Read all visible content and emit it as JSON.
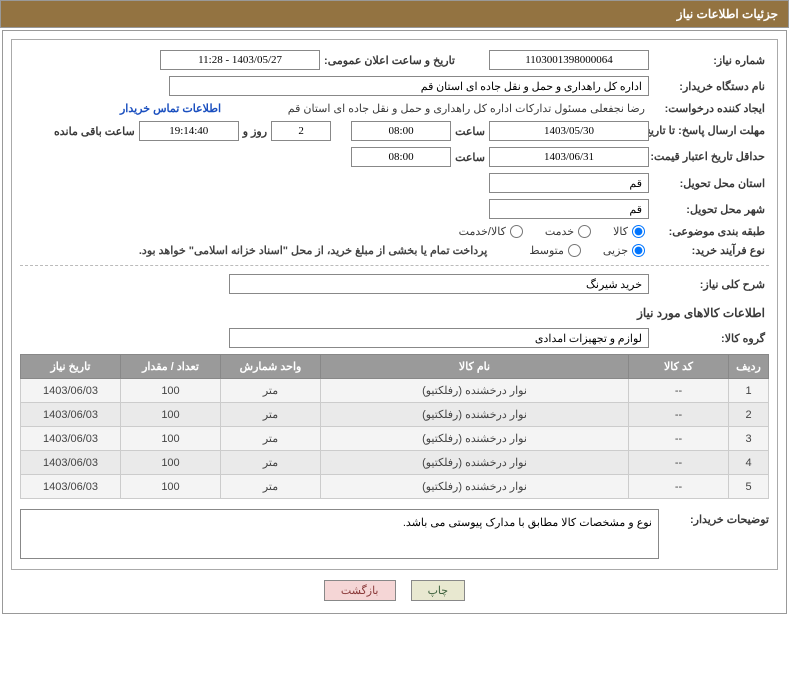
{
  "panelTitle": "جزئیات اطلاعات نیاز",
  "labels": {
    "needNo": "شماره نیاز:",
    "announceDate": "تاریخ و ساعت اعلان عمومی:",
    "buyerOrg": "نام دستگاه خریدار:",
    "requester": "ایجاد کننده درخواست:",
    "contactLink": "اطلاعات تماس خریدار",
    "responseDeadline": "مهلت ارسال پاسخ: تا تاریخ:",
    "hour": "ساعت",
    "daysAnd": "روز و",
    "remaining": "ساعت باقی مانده",
    "priceValidity": "حداقل تاریخ اعتبار قیمت: تا تاریخ:",
    "deliveryProvince": "استان محل تحویل:",
    "deliveryCity": "شهر محل تحویل:",
    "classification": "طبقه بندی موضوعی:",
    "purchaseType": "نوع فرآیند خرید:",
    "treasuryNote": "پرداخت تمام یا بخشی از مبلغ خرید، از محل \"اسناد خزانه اسلامی\" خواهد بود.",
    "needSummary": "شرح کلی نیاز:",
    "itemsSection": "اطلاعات کالاهای مورد نیاز",
    "goodsGroup": "گروه کالا:",
    "buyerNotes": "توضیحات خریدار:"
  },
  "values": {
    "needNo": "1103001398000064",
    "announceDate": "1403/05/27 - 11:28",
    "buyerOrg": "اداره کل راهداری و حمل و نقل جاده ای استان قم",
    "requester": "رضا نجفعلی مسئول تدارکات اداره کل راهداری و حمل و نقل جاده ای استان قم",
    "responseDate": "1403/05/30",
    "responseHour": "08:00",
    "remainingDays": "2",
    "remainingTime": "19:14:40",
    "priceValidityDate": "1403/06/31",
    "priceValidityHour": "08:00",
    "province": "قم",
    "city": "قم",
    "needSummary": "خرید شیرنگ",
    "goodsGroup": "لوازم و تجهیزات امدادی",
    "buyerNotes": "نوع و مشخصات کالا مطابق با مدارک پیوستی می باشد."
  },
  "radios": {
    "class": {
      "goods": "کالا",
      "service": "خدمت",
      "goodsService": "کالا/خدمت",
      "selected": "goods"
    },
    "type": {
      "partial": "جزیی",
      "medium": "متوسط",
      "selected": "partial"
    }
  },
  "table": {
    "headers": {
      "row": "ردیف",
      "code": "کد کالا",
      "name": "نام کالا",
      "unit": "واحد شمارش",
      "qty": "تعداد / مقدار",
      "date": "تاریخ نیاز"
    },
    "rows": [
      {
        "row": "1",
        "code": "--",
        "name": "نوار درخشنده (رفلکتیو)",
        "unit": "متر",
        "qty": "100",
        "date": "1403/06/03"
      },
      {
        "row": "2",
        "code": "--",
        "name": "نوار درخشنده (رفلکتیو)",
        "unit": "متر",
        "qty": "100",
        "date": "1403/06/03"
      },
      {
        "row": "3",
        "code": "--",
        "name": "نوار درخشنده (رفلکتیو)",
        "unit": "متر",
        "qty": "100",
        "date": "1403/06/03"
      },
      {
        "row": "4",
        "code": "--",
        "name": "نوار درخشنده (رفلکتیو)",
        "unit": "متر",
        "qty": "100",
        "date": "1403/06/03"
      },
      {
        "row": "5",
        "code": "--",
        "name": "نوار درخشنده (رفلکتیو)",
        "unit": "متر",
        "qty": "100",
        "date": "1403/06/03"
      }
    ]
  },
  "buttons": {
    "print": "چاپ",
    "back": "بازگشت"
  },
  "colors": {
    "header": "#937341",
    "link": "#1a4fbf",
    "thBg": "#9a9a9a"
  }
}
